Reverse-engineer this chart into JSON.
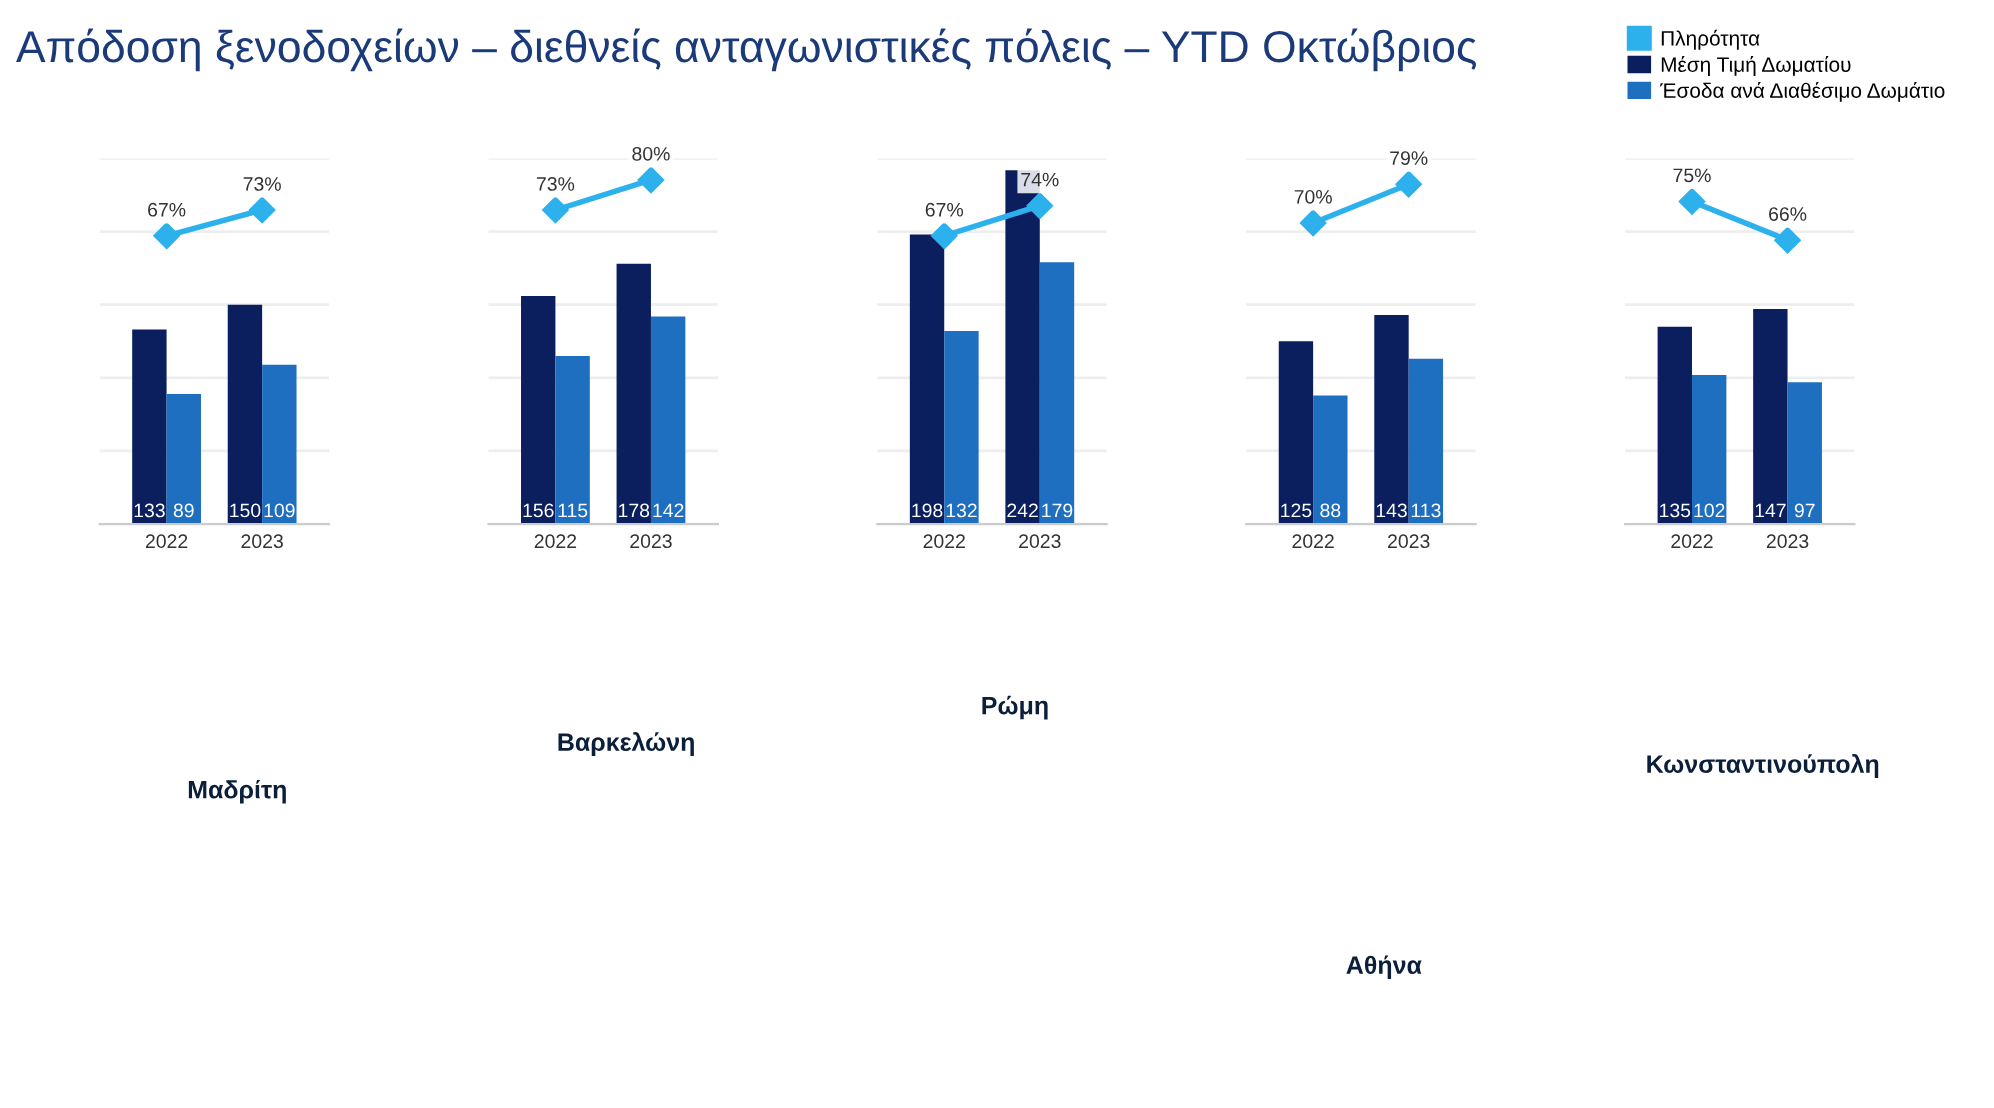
{
  "chart_data": [
    {
      "type": "bar",
      "title": "Απόδοση ξενοδοχείων – διεθνείς ανταγωνιστικές πόλεις – YTD Οκτώβριος",
      "categories": [
        "2022",
        "2023"
      ],
      "ylim": [
        0,
        250
      ],
      "yticks": [
        {
          "value": 0,
          "label": null
        },
        {
          "value": 50,
          "label": null
        },
        {
          "value": 100,
          "label": null
        },
        {
          "value": 150,
          "label": null
        },
        {
          "value": 200,
          "label": null
        },
        {
          "value": 250,
          "label": null
        }
      ],
      "grid": "y",
      "y2lim": [
        0,
        85
      ],
      "data_labels": true,
      "annotations": [
        "Μαδρίτη"
      ],
      "series": [
        {
          "color": "#0b1f5e",
          "values": [
            133,
            150
          ]
        },
        {
          "color": "#1f6fc0",
          "values": [
            89,
            109
          ]
        },
        {
          "type": "line",
          "axis": "y2",
          "marker": "diamond",
          "color": "#2cb1ec",
          "values": [
            67,
            73
          ],
          "value_labels": [
            "67%",
            "73%"
          ]
        }
      ]
    },
    {
      "type": "bar",
      "categories": [
        "2022",
        "2023"
      ],
      "ylim": [
        0,
        250
      ],
      "yticks": [
        {
          "value": 0,
          "label": null
        },
        {
          "value": 50,
          "label": null
        },
        {
          "value": 100,
          "label": null
        },
        {
          "value": 150,
          "label": null
        },
        {
          "value": 200,
          "label": null
        },
        {
          "value": 250,
          "label": null
        }
      ],
      "grid": "y",
      "y2lim": [
        0,
        85
      ],
      "data_labels": true,
      "annotations": [
        "Βαρκελώνη"
      ],
      "series": [
        {
          "color": "#0b1f5e",
          "values": [
            156,
            178
          ]
        },
        {
          "color": "#1f6fc0",
          "values": [
            115,
            142
          ]
        },
        {
          "type": "line",
          "axis": "y2",
          "marker": "diamond",
          "color": "#2cb1ec",
          "values": [
            73,
            80
          ],
          "value_labels": [
            "73%",
            "80%"
          ]
        }
      ]
    },
    {
      "type": "bar",
      "categories": [
        "2022",
        "2023"
      ],
      "ylim": [
        0,
        250
      ],
      "yticks": [
        {
          "value": 0,
          "label": null
        },
        {
          "value": 50,
          "label": null
        },
        {
          "value": 100,
          "label": null
        },
        {
          "value": 150,
          "label": null
        },
        {
          "value": 200,
          "label": null
        },
        {
          "value": 250,
          "label": null
        }
      ],
      "grid": "y",
      "y2lim": [
        0,
        85
      ],
      "data_labels": true,
      "annotations": [
        "Ρώμη"
      ],
      "series": [
        {
          "color": "#0b1f5e",
          "values": [
            198,
            242
          ]
        },
        {
          "color": "#1f6fc0",
          "values": [
            132,
            179
          ]
        },
        {
          "type": "line",
          "axis": "y2",
          "marker": "diamond",
          "color": "#2cb1ec",
          "values": [
            67,
            74
          ],
          "value_labels": [
            "67%",
            "74%"
          ]
        }
      ]
    },
    {
      "type": "bar",
      "categories": [
        "2022",
        "2023"
      ],
      "ylim": [
        0,
        250
      ],
      "yticks": [
        {
          "value": 0,
          "label": null
        },
        {
          "value": 50,
          "label": null
        },
        {
          "value": 100,
          "label": null
        },
        {
          "value": 150,
          "label": null
        },
        {
          "value": 200,
          "label": null
        },
        {
          "value": 250,
          "label": null
        }
      ],
      "grid": "y",
      "y2lim": [
        0,
        85
      ],
      "data_labels": true,
      "annotations": [
        "Αθήνα"
      ],
      "series": [
        {
          "color": "#0b1f5e",
          "values": [
            125,
            143
          ]
        },
        {
          "color": "#1f6fc0",
          "values": [
            88,
            113
          ]
        },
        {
          "type": "line",
          "axis": "y2",
          "marker": "diamond",
          "color": "#2cb1ec",
          "values": [
            70,
            79
          ],
          "value_labels": [
            "70%",
            "79%"
          ]
        }
      ]
    },
    {
      "type": "bar",
      "categories": [
        "2022",
        "2023"
      ],
      "ylim": [
        0,
        250
      ],
      "yticks": [
        {
          "value": 0,
          "label": null
        },
        {
          "value": 50,
          "label": null
        },
        {
          "value": 100,
          "label": null
        },
        {
          "value": 150,
          "label": null
        },
        {
          "value": 200,
          "label": null
        },
        {
          "value": 250,
          "label": null
        }
      ],
      "grid": "y",
      "y2lim": [
        0,
        85
      ],
      "data_labels": true,
      "legend": "top right",
      "annotations": [
        "Κωνσταντινούπολη"
      ],
      "series": [
        {
          "name": "Μέση Τιμή Δωματίου",
          "color": "#0b1f5e",
          "values": [
            135,
            147
          ]
        },
        {
          "name": "Έσοδα ανά Διαθέσιμο Δωμάτιο",
          "color": "#1f6fc0",
          "values": [
            102,
            97
          ]
        },
        {
          "name": "Πληρότητα",
          "type": "line",
          "axis": "y2",
          "marker": "diamond",
          "color": "#2cb1ec",
          "values": [
            75,
            66
          ],
          "value_labels": [
            "75%",
            "66%"
          ]
        }
      ]
    }
  ]
}
